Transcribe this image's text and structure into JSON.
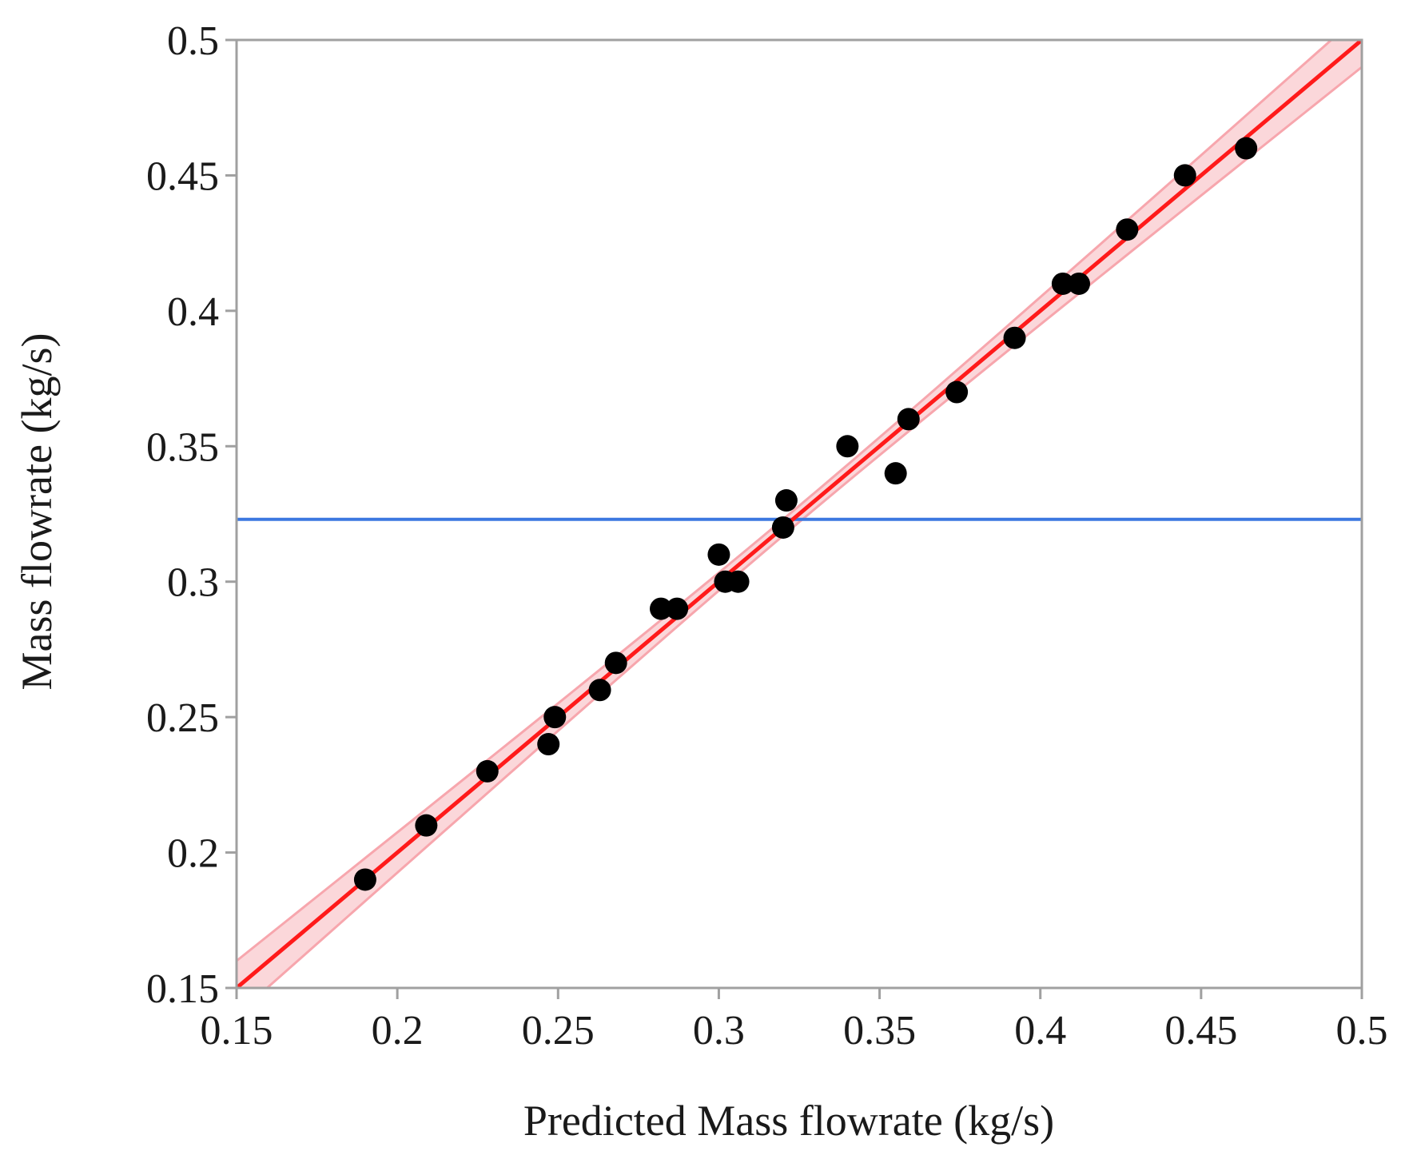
{
  "chart_data": {
    "type": "scatter",
    "title": "",
    "xlabel": "Predicted Mass flowrate (kg/s)",
    "ylabel": "Mass flowrate (kg/s)",
    "xlim": [
      0.15,
      0.5
    ],
    "ylim": [
      0.15,
      0.5
    ],
    "xticks": [
      "0.15",
      "0.2",
      "0.25",
      "0.3",
      "0.35",
      "0.4",
      "0.45",
      "0.5"
    ],
    "yticks": [
      "0.15",
      "0.2",
      "0.25",
      "0.3",
      "0.35",
      "0.4",
      "0.45",
      "0.5"
    ],
    "grid": false,
    "legend": "none",
    "points": [
      {
        "x": 0.19,
        "y": 0.19
      },
      {
        "x": 0.209,
        "y": 0.21
      },
      {
        "x": 0.228,
        "y": 0.23
      },
      {
        "x": 0.247,
        "y": 0.24
      },
      {
        "x": 0.249,
        "y": 0.25
      },
      {
        "x": 0.263,
        "y": 0.26
      },
      {
        "x": 0.268,
        "y": 0.27
      },
      {
        "x": 0.282,
        "y": 0.29
      },
      {
        "x": 0.287,
        "y": 0.29
      },
      {
        "x": 0.3,
        "y": 0.31
      },
      {
        "x": 0.302,
        "y": 0.3
      },
      {
        "x": 0.306,
        "y": 0.3
      },
      {
        "x": 0.32,
        "y": 0.32
      },
      {
        "x": 0.321,
        "y": 0.33
      },
      {
        "x": 0.34,
        "y": 0.35
      },
      {
        "x": 0.355,
        "y": 0.34
      },
      {
        "x": 0.359,
        "y": 0.36
      },
      {
        "x": 0.374,
        "y": 0.37
      },
      {
        "x": 0.392,
        "y": 0.39
      },
      {
        "x": 0.407,
        "y": 0.41
      },
      {
        "x": 0.412,
        "y": 0.41
      },
      {
        "x": 0.427,
        "y": 0.43
      },
      {
        "x": 0.445,
        "y": 0.45
      },
      {
        "x": 0.464,
        "y": 0.46
      }
    ],
    "fit_line": {
      "x": [
        0.15,
        0.5
      ],
      "y": [
        0.15,
        0.5
      ],
      "color": "#ff1a1a"
    },
    "confidence_band": {
      "half_width_ends": 0.01,
      "half_width_center": 0.003,
      "color": "#f7a6ad"
    },
    "mean_line": {
      "y": 0.323,
      "color": "#3c78e0"
    },
    "point_color": "#000000",
    "axis_color": "#a0a0a0"
  }
}
